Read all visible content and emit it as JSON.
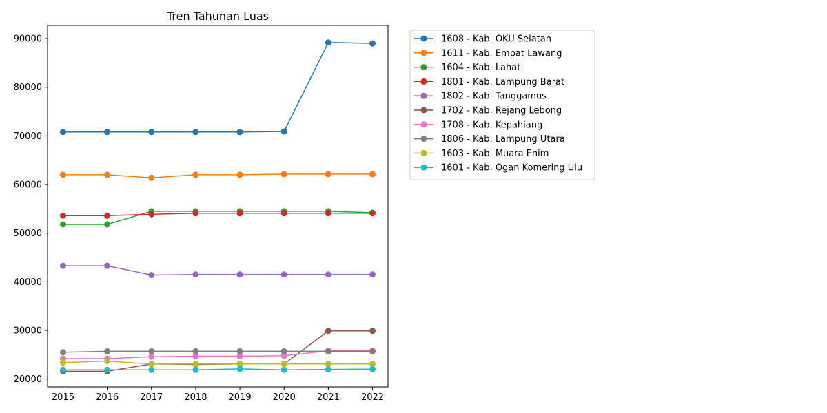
{
  "chart_data": {
    "type": "line",
    "title": "Tren Tahunan Luas",
    "xlabel": "",
    "ylabel": "",
    "x": [
      2015,
      2016,
      2017,
      2018,
      2019,
      2020,
      2021,
      2022
    ],
    "xlim": [
      2014.65,
      2022.35
    ],
    "ylim": [
      18400,
      92700
    ],
    "yticks": [
      20000,
      30000,
      40000,
      50000,
      60000,
      70000,
      80000,
      90000
    ],
    "grid": false,
    "legend_position": "outside-top-right",
    "series": [
      {
        "name": "1608 - Kab. OKU Selatan",
        "color": "#1f77b4",
        "values": [
          70800,
          70800,
          70800,
          70800,
          70800,
          70900,
          89200,
          89000
        ]
      },
      {
        "name": "1611 - Kab. Empat Lawang",
        "color": "#ff7f0e",
        "values": [
          62000,
          62000,
          61400,
          62000,
          62000,
          62150,
          62150,
          62150
        ]
      },
      {
        "name": "1604 - Kab. Lahat",
        "color": "#2ca02c",
        "values": [
          51800,
          51800,
          54500,
          54500,
          54500,
          54500,
          54500,
          54200
        ]
      },
      {
        "name": "1801 - Kab. Lampung Barat",
        "color": "#d62728",
        "values": [
          53600,
          53600,
          53900,
          54100,
          54100,
          54100,
          54100,
          54100
        ]
      },
      {
        "name": "1802 - Kab. Tanggamus",
        "color": "#9467bd",
        "values": [
          43300,
          43300,
          41400,
          41500,
          41500,
          41500,
          41500,
          41500
        ]
      },
      {
        "name": "1702 - Kab. Rejang Lebong",
        "color": "#8c564b",
        "values": [
          21600,
          21600,
          23100,
          23000,
          23100,
          23100,
          29900,
          29900
        ]
      },
      {
        "name": "1708 - Kab. Kepahiang",
        "color": "#e377c2",
        "values": [
          24200,
          24200,
          24600,
          24700,
          24700,
          24800,
          25800,
          25800
        ]
      },
      {
        "name": "1806 - Kab. Lampung Utara",
        "color": "#7f7f7f",
        "values": [
          25500,
          25700,
          25700,
          25700,
          25700,
          25700,
          25700,
          25700
        ]
      },
      {
        "name": "1603 - Kab. Muara Enim",
        "color": "#bcbd22",
        "values": [
          23400,
          23700,
          23100,
          23100,
          23100,
          23100,
          23100,
          23100
        ]
      },
      {
        "name": "1601 - Kab. Ogan Komering Ulu",
        "color": "#17becf",
        "values": [
          21900,
          21900,
          21900,
          21900,
          22100,
          21900,
          22000,
          22050
        ]
      }
    ]
  }
}
